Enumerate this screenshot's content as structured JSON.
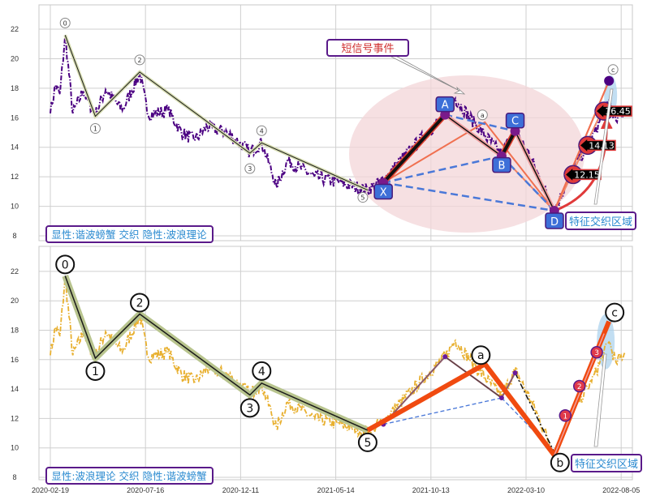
{
  "colors": {
    "top_price": "#4b0082",
    "bottom_price": "#e8b030",
    "wave_line": "#1a1a1a",
    "wave_glow": "#d6dcb0",
    "wave_glow_bottom": "#b8c48e",
    "abc_line": "#f04a10",
    "harmonic_dash": "#4a78d8",
    "harmonic_box": "#3d6fd8",
    "zone_ellipse": "#f3d6d8",
    "annotation_red": "#d03030",
    "annotation_blue": "#2a8ad0",
    "box_border": "#5a1a8a"
  },
  "chart_data": [
    {
      "type": "line",
      "panel": "top",
      "ylim": [
        7.7,
        23.6
      ],
      "yticks": [
        8,
        10,
        12,
        14,
        16,
        18,
        20,
        22
      ],
      "grid": true,
      "price_keypoints": [
        [
          "2020-02-19",
          16.3
        ],
        [
          "2020-02-27",
          18.2
        ],
        [
          "2020-03-05",
          17.6
        ],
        [
          "2020-03-13",
          21.6
        ],
        [
          "2020-03-25",
          16.3
        ],
        [
          "2020-04-10",
          17.8
        ],
        [
          "2020-04-29",
          16.2
        ],
        [
          "2020-05-15",
          17.9
        ],
        [
          "2020-06-10",
          16.5
        ],
        [
          "2020-07-07",
          19.0
        ],
        [
          "2020-07-20",
          16.2
        ],
        [
          "2020-08-20",
          16.5
        ],
        [
          "2020-09-10",
          15.0
        ],
        [
          "2020-10-01",
          14.5
        ],
        [
          "2020-10-20",
          15.4
        ],
        [
          "2020-11-20",
          15.0
        ],
        [
          "2020-12-26",
          13.7
        ],
        [
          "2021-01-14",
          14.3
        ],
        [
          "2021-02-07",
          11.4
        ],
        [
          "2021-02-25",
          13.1
        ],
        [
          "2021-04-10",
          12.0
        ],
        [
          "2021-05-20",
          11.6
        ],
        [
          "2021-07-04",
          11.1
        ],
        [
          "2021-07-29",
          11.8
        ],
        [
          "2021-09-10",
          13.8
        ],
        [
          "2021-11-04",
          16.2
        ],
        [
          "2021-11-20",
          17.3
        ],
        [
          "2021-12-20",
          15.6
        ],
        [
          "2022-01-31",
          13.5
        ],
        [
          "2022-02-21",
          15.3
        ],
        [
          "2022-03-20",
          13.0
        ],
        [
          "2022-04-23",
          9.6
        ],
        [
          "2022-05-20",
          12.5
        ],
        [
          "2022-06-20",
          14.5
        ],
        [
          "2022-07-17",
          17.2
        ],
        [
          "2022-07-28",
          15.8
        ],
        [
          "2022-08-11",
          16.5
        ]
      ],
      "wave_points": [
        {
          "label": "0",
          "date": "2020-03-13",
          "value": 21.6
        },
        {
          "label": "1",
          "date": "2020-04-29",
          "value": 16.1
        },
        {
          "label": "2",
          "date": "2020-07-07",
          "value": 19.1
        },
        {
          "label": "3",
          "date": "2020-12-26",
          "value": 13.6
        },
        {
          "label": "4",
          "date": "2021-01-14",
          "value": 14.3
        },
        {
          "label": "5",
          "date": "2021-07-04",
          "value": 11.1
        }
      ],
      "abc_points": [
        {
          "label": "a",
          "date": "2022-01-05",
          "value": 15.7
        },
        {
          "label": "c",
          "date": "2022-07-17",
          "value": 18.5
        }
      ],
      "harmonic_points": [
        {
          "label": "X",
          "date": "2021-07-29",
          "value": 11.6
        },
        {
          "label": "A",
          "date": "2021-11-04",
          "value": 16.2
        },
        {
          "label": "B",
          "date": "2022-01-31",
          "value": 13.4
        },
        {
          "label": "C",
          "date": "2022-02-21",
          "value": 15.1
        },
        {
          "label": "D",
          "date": "2022-04-23",
          "value": 9.7
        }
      ],
      "targets": [
        "12.15",
        "14.13",
        "16.45"
      ],
      "target_values": [
        12.15,
        14.13,
        16.45
      ],
      "annotation_event": "短信号事件",
      "annotation_zone": "特征交织区域",
      "legend_text": "显性:谐波螃蟹 交织 隐性:波浪理论"
    },
    {
      "type": "line",
      "panel": "bottom",
      "ylim": [
        7.7,
        23.6
      ],
      "yticks": [
        8,
        10,
        12,
        14,
        16,
        18,
        20,
        22
      ],
      "xticks": [
        "2020-02-19",
        "2020-07-16",
        "2020-12-11",
        "2021-05-14",
        "2021-10-13",
        "2022-03-10",
        "2022-08-05"
      ],
      "grid": true,
      "wave_points": [
        {
          "label": "0",
          "date": "2020-03-13",
          "value": 21.7
        },
        {
          "label": "1",
          "date": "2020-04-29",
          "value": 16.1
        },
        {
          "label": "2",
          "date": "2020-07-07",
          "value": 19.1
        },
        {
          "label": "3",
          "date": "2020-12-26",
          "value": 13.6
        },
        {
          "label": "4",
          "date": "2021-01-14",
          "value": 14.4
        },
        {
          "label": "5",
          "date": "2021-07-04",
          "value": 11.2
        }
      ],
      "abc_points": [
        {
          "label": "a",
          "date": "2022-01-05",
          "value": 15.7
        },
        {
          "label": "b",
          "date": "2022-04-23",
          "value": 9.5
        },
        {
          "label": "c",
          "date": "2022-07-17",
          "value": 18.6
        }
      ],
      "sub_markers": [
        {
          "label": "1",
          "date": "2022-05-10",
          "value": 12.2
        },
        {
          "label": "2",
          "date": "2022-06-01",
          "value": 14.2
        },
        {
          "label": "3",
          "date": "2022-06-28",
          "value": 16.5
        }
      ],
      "annotation_zone": "特征交织区域",
      "legend_text": "显性:波浪理论 交织 隐性:谐波螃蟹"
    }
  ]
}
